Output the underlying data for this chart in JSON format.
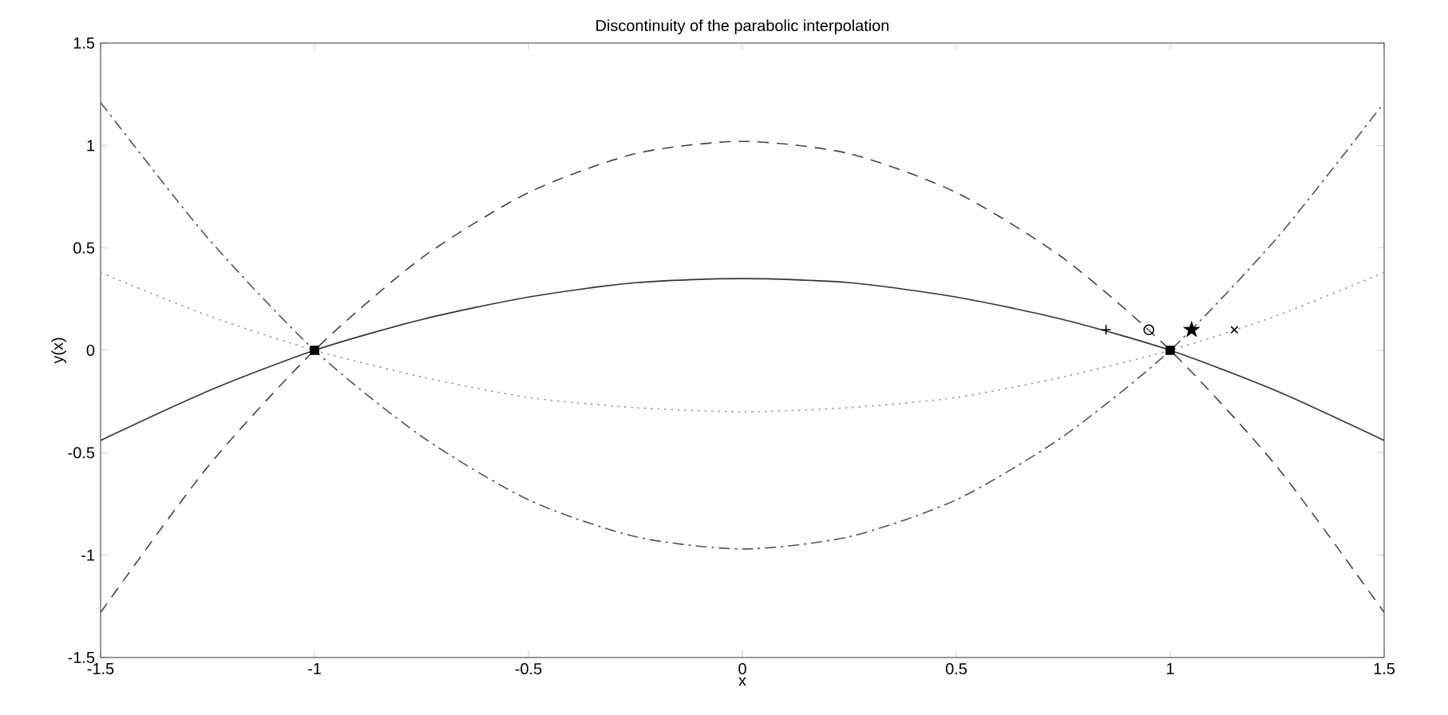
{
  "chart_data": {
    "type": "line",
    "title": "Discontinuity of the parabolic interpolation",
    "xlabel": "x",
    "ylabel": "y(x)",
    "xlim": [
      -1.5,
      1.5
    ],
    "ylim": [
      -1.5,
      1.5
    ],
    "xticks": [
      -1.5,
      -1,
      -0.5,
      0,
      0.5,
      1,
      1.5
    ],
    "yticks": [
      -1.5,
      -1,
      -0.5,
      0,
      0.5,
      1,
      1.5
    ],
    "series": [
      {
        "line_style": "solid",
        "color": "#333333",
        "x": [
          -1.5,
          -1.25,
          -1,
          -0.75,
          -0.5,
          -0.25,
          0,
          0.25,
          0.5,
          0.75,
          1,
          1.25,
          1.5
        ],
        "values": [
          -0.44,
          -0.2,
          0,
          0.15,
          0.26,
          0.33,
          0.35,
          0.33,
          0.26,
          0.15,
          0,
          -0.2,
          -0.44
        ]
      },
      {
        "line_style": "dashed",
        "color": "#444444",
        "x": [
          -1.5,
          -1.25,
          -1,
          -0.75,
          -0.5,
          -0.25,
          0,
          0.25,
          0.5,
          0.75,
          1,
          1.25,
          1.5
        ],
        "values": [
          -1.28,
          -0.57,
          0,
          0.45,
          0.77,
          0.96,
          1.02,
          0.96,
          0.77,
          0.45,
          0,
          -0.57,
          -1.28
        ]
      },
      {
        "line_style": "dotted",
        "color": "#999999",
        "x": [
          -1.5,
          -1.25,
          -1,
          -0.75,
          -0.5,
          -0.25,
          0,
          0.25,
          0.5,
          0.75,
          1,
          1.25,
          1.5
        ],
        "values": [
          0.38,
          0.17,
          0,
          -0.13,
          -0.23,
          -0.28,
          -0.3,
          -0.28,
          -0.23,
          -0.13,
          0,
          0.17,
          0.38
        ]
      },
      {
        "line_style": "dashdot",
        "color": "#555555",
        "x": [
          -1.5,
          -1.25,
          -1,
          -0.75,
          -0.5,
          -0.25,
          0,
          0.25,
          0.5,
          0.75,
          1,
          1.25,
          1.5
        ],
        "values": [
          1.21,
          0.55,
          0,
          -0.42,
          -0.73,
          -0.91,
          -0.97,
          -0.91,
          -0.73,
          -0.42,
          0,
          0.55,
          1.21
        ]
      },
      {
        "type": "scatter",
        "marker": "square",
        "color": "#000000",
        "x": [
          -1,
          1
        ],
        "values": [
          0,
          0
        ]
      },
      {
        "type": "scatter",
        "marker": "plus",
        "color": "#000000",
        "x": [
          0.85
        ],
        "values": [
          0.1
        ]
      },
      {
        "type": "scatter",
        "marker": "circle",
        "color": "#000000",
        "x": [
          0.95
        ],
        "values": [
          0.1
        ]
      },
      {
        "type": "scatter",
        "marker": "star",
        "color": "#000000",
        "x": [
          1.05
        ],
        "values": [
          0.1
        ]
      },
      {
        "type": "scatter",
        "marker": "cross",
        "color": "#000000",
        "x": [
          1.15
        ],
        "values": [
          0.1
        ]
      }
    ]
  }
}
